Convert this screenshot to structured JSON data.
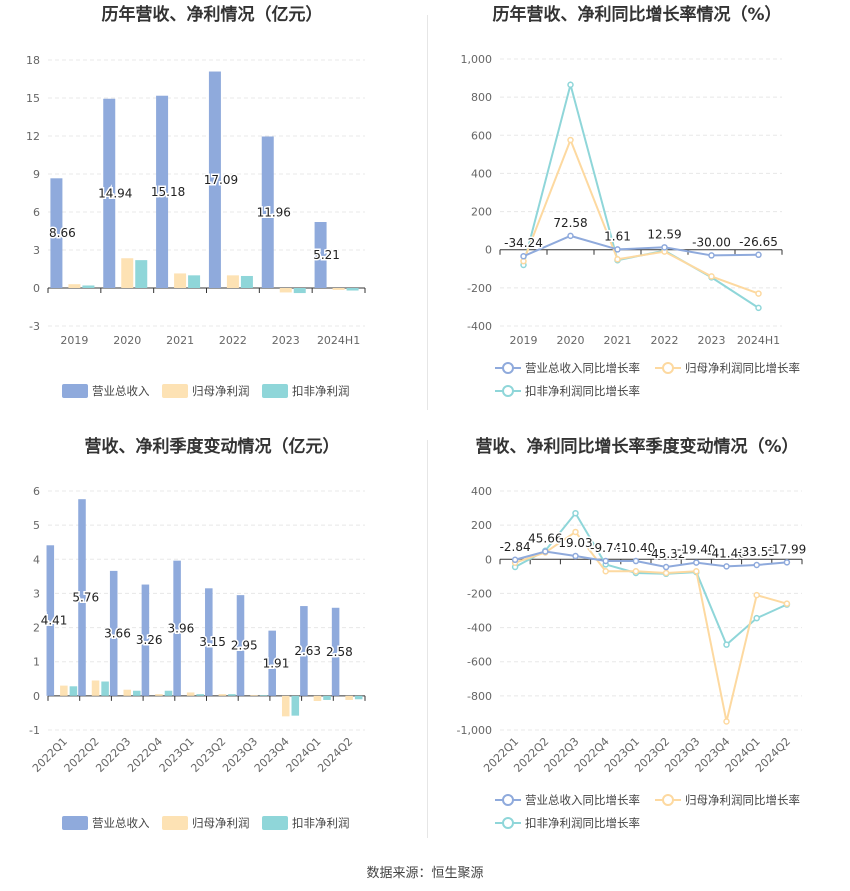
{
  "source_label": "数据来源：恒生聚源",
  "colors": {
    "revenue": "#8faadc",
    "net_profit": "#fde2b4",
    "deducted_profit": "#8fd6d9",
    "revenue_line": "#8faadc",
    "net_line": "#fdd9a0",
    "deducted_line": "#8fd6d9"
  },
  "chart_data": [
    {
      "id": "annual-values",
      "type": "bar",
      "title": "历年营收、净利情况（亿元）",
      "categories": [
        "2019",
        "2020",
        "2021",
        "2022",
        "2023",
        "2024H1"
      ],
      "ylim": [
        -3,
        18
      ],
      "yticks": [
        "-3",
        "0",
        "3",
        "6",
        "9",
        "12",
        "15",
        "18"
      ],
      "ytick_values": [
        -3,
        0,
        3,
        6,
        9,
        12,
        15,
        18
      ],
      "label_series": 0,
      "legend_position": "bottom",
      "series": [
        {
          "name": "营业总收入",
          "values": [
            8.66,
            14.94,
            15.18,
            17.09,
            11.96,
            5.21
          ],
          "labels": [
            "8.66",
            "14.94",
            "15.18",
            "17.09",
            "11.96",
            "5.21"
          ]
        },
        {
          "name": "归母净利润",
          "values": [
            0.3,
            2.35,
            1.15,
            1.0,
            -0.35,
            -0.15
          ]
        },
        {
          "name": "扣非净利润",
          "values": [
            0.2,
            2.2,
            1.0,
            0.95,
            -0.4,
            -0.2
          ]
        }
      ]
    },
    {
      "id": "annual-growth",
      "type": "line",
      "title": "历年营收、净利同比增长率情况（%）",
      "categories": [
        "2019",
        "2020",
        "2021",
        "2022",
        "2023",
        "2024H1"
      ],
      "ylim": [
        -400,
        1000
      ],
      "yticks": [
        "-400",
        "-200",
        "0",
        "200",
        "400",
        "600",
        "800",
        "1,000"
      ],
      "ytick_values": [
        -400,
        -200,
        0,
        200,
        400,
        600,
        800,
        1000
      ],
      "label_series": 0,
      "legend_position": "bottom",
      "series": [
        {
          "name": "营业总收入同比增长率",
          "values": [
            -34.24,
            72.58,
            1.61,
            12.59,
            -30.0,
            -26.65
          ],
          "labels": [
            "-34.24",
            "72.58",
            "1.61",
            "12.59",
            "-30.00",
            "-26.65"
          ]
        },
        {
          "name": "归母净利润同比增长率",
          "values": [
            -60,
            575,
            -50,
            -10,
            -140,
            -230
          ]
        },
        {
          "name": "扣非净利润同比增长率",
          "values": [
            -80,
            865,
            -55,
            -5,
            -145,
            -305
          ]
        }
      ]
    },
    {
      "id": "quarterly-values",
      "type": "bar",
      "title": "营收、净利季度变动情况（亿元）",
      "categories": [
        "2022Q1",
        "2022Q2",
        "2022Q3",
        "2022Q4",
        "2023Q1",
        "2023Q2",
        "2023Q3",
        "2023Q4",
        "2024Q1",
        "2024Q2"
      ],
      "ylim": [
        -1,
        6
      ],
      "yticks": [
        "-1",
        "0",
        "1",
        "2",
        "3",
        "4",
        "5",
        "6"
      ],
      "ytick_values": [
        -1,
        0,
        1,
        2,
        3,
        4,
        5,
        6
      ],
      "label_series": 0,
      "legend_position": "bottom",
      "series": [
        {
          "name": "营业总收入",
          "values": [
            4.41,
            5.76,
            3.66,
            3.26,
            3.96,
            3.15,
            2.95,
            1.91,
            2.63,
            2.58
          ],
          "labels": [
            "4.41",
            "5.76",
            "3.66",
            "3.26",
            "3.96",
            "3.15",
            "2.95",
            "1.91",
            "2.63",
            "2.58"
          ]
        },
        {
          "name": "归母净利润",
          "values": [
            0.3,
            0.45,
            0.18,
            0.05,
            0.1,
            0.05,
            0.02,
            -0.6,
            -0.15,
            -0.12
          ]
        },
        {
          "name": "扣非净利润",
          "values": [
            0.28,
            0.42,
            0.15,
            0.15,
            0.05,
            0.05,
            0.02,
            -0.58,
            -0.12,
            -0.1
          ]
        }
      ]
    },
    {
      "id": "quarterly-growth",
      "type": "line",
      "title": "营收、净利同比增长率季度变动情况（%）",
      "categories": [
        "2022Q1",
        "2022Q2",
        "2022Q3",
        "2022Q4",
        "2023Q1",
        "2023Q2",
        "2023Q3",
        "2023Q4",
        "2024Q1",
        "2024Q2"
      ],
      "ylim": [
        -1000,
        400
      ],
      "yticks": [
        "-1,000",
        "-800",
        "-600",
        "-400",
        "-200",
        "0",
        "200",
        "400"
      ],
      "ytick_values": [
        -1000,
        -800,
        -600,
        -400,
        -200,
        0,
        200,
        400
      ],
      "label_series": 0,
      "legend_position": "bottom",
      "series": [
        {
          "name": "营业总收入同比增长率",
          "values": [
            -2.84,
            45.66,
            19.03,
            -9.74,
            -10.4,
            -45.32,
            -19.4,
            -41.46,
            -33.55,
            -17.99
          ],
          "labels": [
            "-2.84",
            "45.66",
            "19.03",
            "-9.74",
            "-10.40",
            "-45.32",
            "-19.40",
            "-41.46",
            "-33.55",
            "-17.99"
          ]
        },
        {
          "name": "归母净利润同比增长率",
          "values": [
            -20,
            40,
            160,
            -70,
            -70,
            -80,
            -70,
            -950,
            -210,
            -260
          ]
        },
        {
          "name": "扣非净利润同比增长率",
          "values": [
            -45,
            50,
            270,
            -30,
            -80,
            -85,
            -75,
            -500,
            -345,
            -265
          ]
        }
      ]
    }
  ]
}
